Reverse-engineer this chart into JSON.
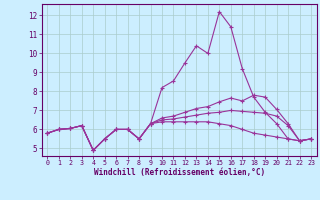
{
  "xlabel": "Windchill (Refroidissement éolien,°C)",
  "background_color": "#cceeff",
  "grid_color": "#aacccc",
  "line_color": "#993399",
  "xlim": [
    -0.5,
    23.5
  ],
  "ylim": [
    4.6,
    12.6
  ],
  "yticks": [
    5,
    6,
    7,
    8,
    9,
    10,
    11,
    12
  ],
  "xticks": [
    0,
    1,
    2,
    3,
    4,
    5,
    6,
    7,
    8,
    9,
    10,
    11,
    12,
    13,
    14,
    15,
    16,
    17,
    18,
    19,
    20,
    21,
    22,
    23
  ],
  "line1_x": [
    0,
    1,
    2,
    3,
    4,
    5,
    6,
    7,
    8,
    9,
    10,
    11,
    12,
    13,
    14,
    15,
    16,
    17,
    18,
    19,
    20,
    21,
    22,
    23
  ],
  "line1_y": [
    5.8,
    6.0,
    6.05,
    6.2,
    4.9,
    5.5,
    6.0,
    6.0,
    5.5,
    6.3,
    8.2,
    8.55,
    9.5,
    10.4,
    10.0,
    12.2,
    11.4,
    9.2,
    7.7,
    6.9,
    6.3,
    5.5,
    5.4,
    5.5
  ],
  "line2_x": [
    0,
    1,
    2,
    3,
    4,
    5,
    6,
    7,
    8,
    9,
    10,
    11,
    12,
    13,
    14,
    15,
    16,
    17,
    18,
    19,
    20,
    21,
    22,
    23
  ],
  "line2_y": [
    5.8,
    6.0,
    6.05,
    6.2,
    4.9,
    5.5,
    6.0,
    6.0,
    5.5,
    6.3,
    6.6,
    6.7,
    6.9,
    7.1,
    7.2,
    7.45,
    7.65,
    7.5,
    7.8,
    7.7,
    7.05,
    6.3,
    5.4,
    5.5
  ],
  "line3_x": [
    0,
    1,
    2,
    3,
    4,
    5,
    6,
    7,
    8,
    9,
    10,
    11,
    12,
    13,
    14,
    15,
    16,
    17,
    18,
    19,
    20,
    21,
    22,
    23
  ],
  "line3_y": [
    5.8,
    6.0,
    6.05,
    6.2,
    4.9,
    5.5,
    6.0,
    6.0,
    5.5,
    6.3,
    6.5,
    6.55,
    6.65,
    6.75,
    6.85,
    6.9,
    7.0,
    6.95,
    6.9,
    6.85,
    6.7,
    6.2,
    5.4,
    5.5
  ],
  "line4_x": [
    0,
    1,
    2,
    3,
    4,
    5,
    6,
    7,
    8,
    9,
    10,
    11,
    12,
    13,
    14,
    15,
    16,
    17,
    18,
    19,
    20,
    21,
    22,
    23
  ],
  "line4_y": [
    5.8,
    6.0,
    6.05,
    6.2,
    4.9,
    5.5,
    6.0,
    6.0,
    5.5,
    6.3,
    6.4,
    6.4,
    6.4,
    6.4,
    6.4,
    6.3,
    6.2,
    6.0,
    5.8,
    5.7,
    5.6,
    5.5,
    5.4,
    5.5
  ]
}
